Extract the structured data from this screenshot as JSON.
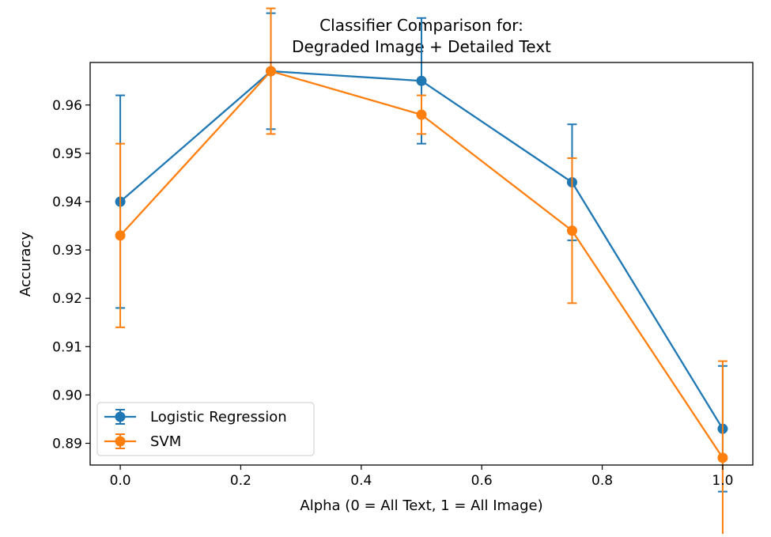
{
  "chart_data": {
    "type": "line",
    "title_line1": "Classifier Comparison for:",
    "title_line2": "Degraded Image + Detailed Text",
    "xlabel": "Alpha (0 = All Text, 1 = All Image)",
    "ylabel": "Accuracy",
    "x": [
      0.0,
      0.25,
      0.5,
      0.75,
      1.0
    ],
    "xlim": [
      -0.05,
      1.05
    ],
    "ylim": [
      0.8855,
      0.9688
    ],
    "xticks": [
      0.0,
      0.2,
      0.4,
      0.6,
      0.8,
      1.0
    ],
    "xtick_labels": [
      "0.0",
      "0.2",
      "0.4",
      "0.6",
      "0.8",
      "1.0"
    ],
    "yticks": [
      0.89,
      0.9,
      0.91,
      0.92,
      0.93,
      0.94,
      0.95,
      0.96
    ],
    "ytick_labels": [
      "0.89",
      "0.90",
      "0.91",
      "0.92",
      "0.93",
      "0.94",
      "0.95",
      "0.96"
    ],
    "grid": false,
    "legend_position": "lower-left",
    "series": [
      {
        "name": "Logistic Regression",
        "color": "#1f77b4",
        "values": [
          0.94,
          0.967,
          0.965,
          0.944,
          0.893
        ],
        "err": [
          0.022,
          0.012,
          0.013,
          0.012,
          0.013
        ]
      },
      {
        "name": "SVM",
        "color": "#ff7f0e",
        "values": [
          0.933,
          0.967,
          0.958,
          0.934,
          0.887
        ],
        "err": [
          0.019,
          0.013,
          0.004,
          0.015,
          0.02
        ]
      }
    ]
  }
}
